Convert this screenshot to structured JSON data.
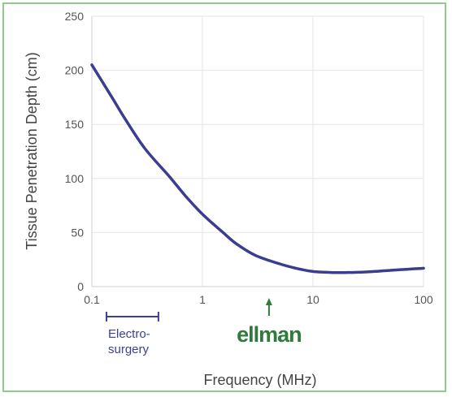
{
  "colors": {
    "curve": "#3b3d8f",
    "frame": "#8fcc8a",
    "grid": "#e6e6e6",
    "annotation": "#3c3f93",
    "logo": "#2f7a3c"
  },
  "chart_data": {
    "type": "line",
    "title": "",
    "xlabel": "Frequency (MHz)",
    "ylabel": "Tissue Penetration Depth (cm)",
    "xscale": "log",
    "xlim": [
      0.1,
      100
    ],
    "ylim": [
      0,
      250
    ],
    "grid": true,
    "x_ticks": [
      0.1,
      1,
      10,
      100
    ],
    "x_tick_labels": [
      "0.1",
      "1",
      "10",
      "100"
    ],
    "y_ticks": [
      0,
      50,
      100,
      150,
      200,
      250
    ],
    "y_tick_labels": [
      "0",
      "50",
      "100",
      "150",
      "200",
      "250"
    ],
    "series": [
      {
        "x": [
          0.1,
          0.15,
          0.2,
          0.3,
          0.5,
          0.7,
          1,
          1.5,
          2,
          3,
          5,
          7,
          10,
          15,
          20,
          30,
          50,
          70,
          100
        ],
        "y": [
          205,
          176,
          155,
          128,
          102,
          84,
          67,
          51,
          40,
          29,
          21,
          17,
          14,
          13,
          13,
          13.5,
          15,
          16,
          17
        ]
      }
    ],
    "annotations": {
      "electrosurgery_label": "Electro-\nsurgery",
      "electrosurgery_range": [
        0.15,
        0.4
      ],
      "logo_text": "ellman",
      "logo_arrow_x": 4
    }
  }
}
